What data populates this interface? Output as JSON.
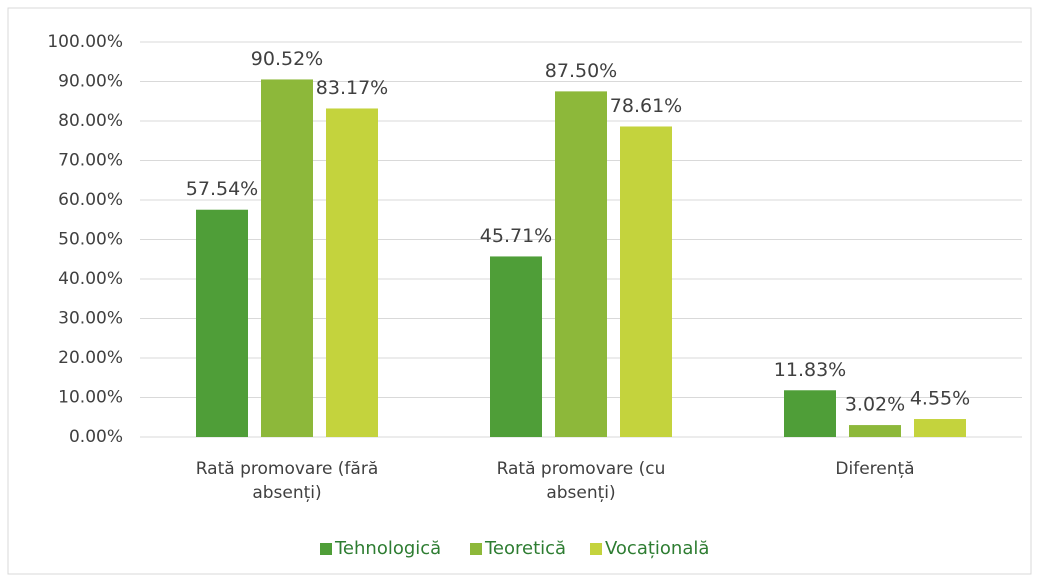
{
  "chart_data": {
    "type": "bar",
    "categories": [
      "Rată promovare (fără absenți)",
      "Rată promovare (cu absenți)",
      "Diferență"
    ],
    "series": [
      {
        "name": "Tehnologică",
        "color": "#4f9e38",
        "values": [
          57.54,
          45.71,
          11.83
        ],
        "value_labels": [
          "57.54%",
          "45.71%",
          "11.83%"
        ]
      },
      {
        "name": "Teoretică",
        "color": "#8db83a",
        "values": [
          90.52,
          87.5,
          3.02
        ],
        "value_labels": [
          "90.52%",
          "87.50%",
          "3.02%"
        ]
      },
      {
        "name": "Vocațională",
        "color": "#c4d33d",
        "values": [
          83.17,
          78.61,
          4.55
        ],
        "value_labels": [
          "83.17%",
          "78.61%",
          "4.55%"
        ]
      }
    ],
    "ylim": [
      0,
      100
    ],
    "yticks": [
      {
        "value": 0,
        "label": "0.00%"
      },
      {
        "value": 10,
        "label": "10.00%"
      },
      {
        "value": 20,
        "label": "20.00%"
      },
      {
        "value": 30,
        "label": "30.00%"
      },
      {
        "value": 40,
        "label": "40.00%"
      },
      {
        "value": 50,
        "label": "50.00%"
      },
      {
        "value": 60,
        "label": "60.00%"
      },
      {
        "value": 70,
        "label": "70.00%"
      },
      {
        "value": 80,
        "label": "80.00%"
      },
      {
        "value": 90,
        "label": "90.00%"
      },
      {
        "value": 100,
        "label": "100.00%"
      }
    ],
    "grid": true,
    "legend": "bottom"
  }
}
